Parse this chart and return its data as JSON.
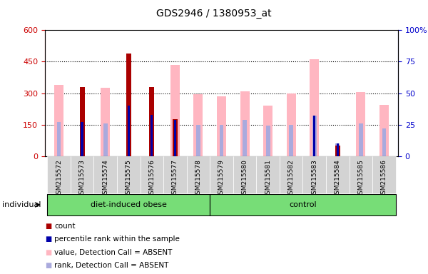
{
  "title": "GDS2946 / 1380953_at",
  "samples": [
    "GSM215572",
    "GSM215573",
    "GSM215574",
    "GSM215575",
    "GSM215576",
    "GSM215577",
    "GSM215578",
    "GSM215579",
    "GSM215580",
    "GSM215581",
    "GSM215582",
    "GSM215583",
    "GSM215584",
    "GSM215585",
    "GSM215586"
  ],
  "n_obese": 7,
  "n_control": 8,
  "count": [
    0,
    330,
    0,
    490,
    330,
    175,
    0,
    0,
    0,
    0,
    0,
    0,
    50,
    0,
    0
  ],
  "percentile_rank_pct": [
    0,
    27,
    0,
    40,
    33,
    29,
    0,
    0,
    0,
    0,
    0,
    32,
    10,
    0,
    0
  ],
  "absent_value": [
    340,
    0,
    325,
    0,
    0,
    435,
    295,
    285,
    310,
    240,
    300,
    460,
    0,
    305,
    245
  ],
  "absent_rank_pct": [
    27,
    0,
    26,
    0,
    0,
    0,
    25,
    25,
    29,
    24,
    25,
    32,
    10,
    26,
    22
  ],
  "ylim_left": [
    0,
    600
  ],
  "ylim_right": [
    0,
    100
  ],
  "yticks_left": [
    0,
    150,
    300,
    450,
    600
  ],
  "yticks_right": [
    0,
    25,
    50,
    75,
    100
  ],
  "absent_value_color": "#FFB6C1",
  "absent_rank_color": "#AAAADD",
  "count_color": "#AA0000",
  "percentile_color": "#0000AA",
  "left_axis_color": "#CC0000",
  "right_axis_color": "#0000CC",
  "grid_color": "#000000",
  "group_bg_color": "#77DD77",
  "tick_label_bg": "#D3D3D3",
  "legend_items": [
    "count",
    "percentile rank within the sample",
    "value, Detection Call = ABSENT",
    "rank, Detection Call = ABSENT"
  ],
  "legend_colors": [
    "#AA0000",
    "#0000AA",
    "#FFB6C1",
    "#AAAADD"
  ],
  "obese_label": "diet-induced obese",
  "control_label": "control",
  "individual_label": "individual"
}
